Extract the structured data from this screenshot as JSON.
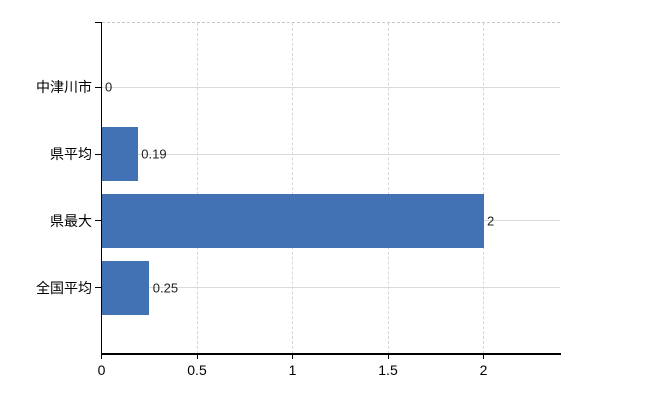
{
  "chart_data": {
    "type": "bar",
    "orientation": "horizontal",
    "title": "",
    "categories": [
      "中津川市",
      "県平均",
      "県最大",
      "全国平均"
    ],
    "values": [
      0,
      0.19,
      2,
      0.25
    ],
    "value_labels": [
      "0",
      "0.19",
      "2",
      "0.25"
    ],
    "x_ticks": [
      {
        "value": 0,
        "label": "0"
      },
      {
        "value": 0.5,
        "label": "0.5"
      },
      {
        "value": 1,
        "label": "1"
      },
      {
        "value": 1.5,
        "label": "1.5"
      },
      {
        "value": 2,
        "label": "2"
      }
    ],
    "xlim": [
      0,
      2.4
    ],
    "grid": true,
    "legend": false,
    "style": {
      "bar_color": "#4272b4",
      "h_grid_color": "#d5ddd5",
      "v_grid_color": "#d9d4d9",
      "top_border_color": "#c9c9c9",
      "axis_color": "#000000",
      "category_label_color": "#000000",
      "tick_label_color": "#000000",
      "value_label_color": "#222222",
      "background": "#ffffff"
    }
  }
}
